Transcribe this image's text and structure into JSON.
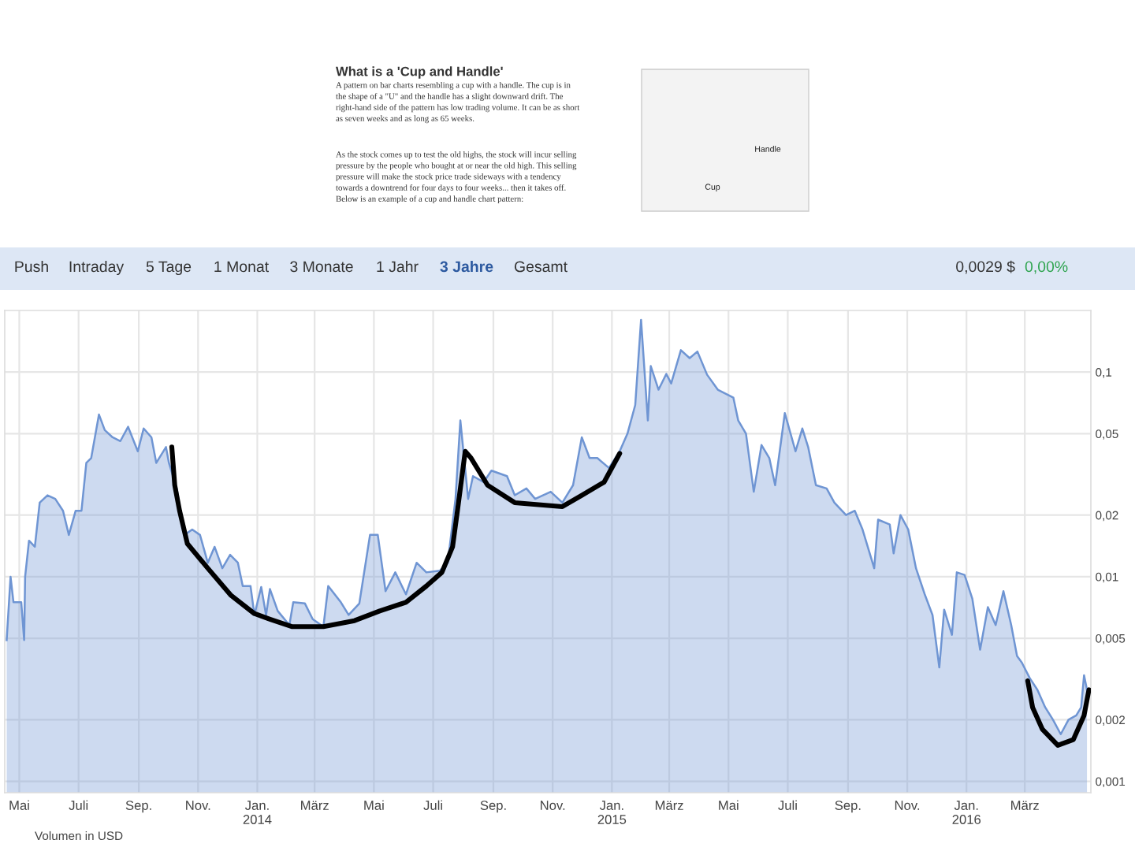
{
  "chart_data": {
    "type": "area",
    "title": "What is a 'Cup and Handle'",
    "annotations": [
      "A pattern on bar charts resembling a cup with a handle. The cup is in\nthe shape of a \"U\" and the handle has a slight downward drift. The\nright-hand side of the pattern has low trading volume. It can be as short\nas seven weeks and as long as 65 weeks.",
      "As the stock comes up to test the old highs, the stock will incur selling\npressure by the people who bought at or near the old high. This selling\npressure will make the stock price trade sideways with a tendency\ntowards a downtrend for four days to four weeks... then it takes off.\nBelow is an example of a cup and handle chart pattern:",
      "Cup",
      "Handle",
      "Push",
      "Intraday",
      "5 Tage",
      "1 Monat",
      "3 Monate",
      "1 Jahr",
      "3 Jahre",
      "Gesamt",
      "0,0029 $",
      "0,00%",
      "Volumen in USD"
    ],
    "series": [
      {
        "color": "#6f95d3",
        "x": [
          "2013-04-18",
          "2013-04-22",
          "2013-04-25",
          "2013-05-03",
          "2013-05-06",
          "2013-05-07",
          "2013-05-11",
          "2013-05-17",
          "2013-05-22",
          "2013-05-30",
          "2013-06-07",
          "2013-06-15",
          "2013-06-21",
          "2013-06-28",
          "2013-07-04",
          "2013-07-09",
          "2013-07-14",
          "2013-07-22",
          "2013-07-28",
          "2013-08-05",
          "2013-08-13",
          "2013-08-21",
          "2013-08-31",
          "2013-09-06",
          "2013-09-14",
          "2013-09-19",
          "2013-09-29",
          "2013-10-02",
          "2013-10-10",
          "2013-10-18",
          "2013-10-26",
          "2013-11-03",
          "2013-11-11",
          "2013-11-18",
          "2013-11-26",
          "2013-12-04",
          "2013-12-12",
          "2013-12-17",
          "2013-12-25",
          "2013-12-29",
          "2014-01-05",
          "2014-01-10",
          "2014-01-14",
          "2014-01-22",
          "2014-02-03",
          "2014-02-07",
          "2014-02-19",
          "2014-02-27",
          "2014-03-10",
          "2014-03-15",
          "2014-03-28",
          "2014-04-05",
          "2014-04-16",
          "2014-04-27",
          "2014-05-05",
          "2014-05-13",
          "2014-05-23",
          "2014-06-03",
          "2014-06-14",
          "2014-06-24",
          "2014-07-08",
          "2014-07-16",
          "2014-07-24",
          "2014-07-29",
          "2014-08-06",
          "2014-08-11",
          "2014-08-22",
          "2014-08-30",
          "2014-09-15",
          "2014-09-23",
          "2014-10-05",
          "2014-10-14",
          "2014-10-30",
          "2014-11-11",
          "2014-11-22",
          "2014-12-01",
          "2014-12-09",
          "2014-12-17",
          "2014-12-29",
          "2015-01-09",
          "2015-01-17",
          "2015-01-25",
          "2015-01-31",
          "2015-02-07",
          "2015-02-10",
          "2015-02-18",
          "2015-02-26",
          "2015-03-03",
          "2015-03-13",
          "2015-03-22",
          "2015-03-30",
          "2015-04-09",
          "2015-04-20",
          "2015-05-06",
          "2015-05-11",
          "2015-05-19",
          "2015-05-27",
          "2015-06-04",
          "2015-06-12",
          "2015-06-18",
          "2015-06-28",
          "2015-07-09",
          "2015-07-16",
          "2015-07-22",
          "2015-07-30",
          "2015-08-10",
          "2015-08-18",
          "2015-08-30",
          "2015-09-08",
          "2015-09-16",
          "2015-09-28",
          "2015-10-02",
          "2015-10-14",
          "2015-10-18",
          "2015-10-25",
          "2015-11-02",
          "2015-11-10",
          "2015-11-19",
          "2015-11-27",
          "2015-12-04",
          "2015-12-09",
          "2015-12-17",
          "2015-12-22",
          "2015-12-30",
          "2016-01-07",
          "2016-01-15",
          "2016-01-23",
          "2016-01-31",
          "2016-02-08",
          "2016-02-16",
          "2016-02-22",
          "2016-02-27",
          "2016-03-06",
          "2016-03-14",
          "2016-03-22",
          "2016-03-30",
          "2016-04-07",
          "2016-04-15",
          "2016-04-23",
          "2016-04-28",
          "2016-05-01",
          "2016-05-04"
        ],
        "values": [
          0.0049,
          0.01,
          0.0075,
          0.0075,
          0.0049,
          0.01,
          0.015,
          0.014,
          0.023,
          0.025,
          0.024,
          0.021,
          0.016,
          0.021,
          0.021,
          0.036,
          0.038,
          0.062,
          0.052,
          0.048,
          0.046,
          0.054,
          0.041,
          0.053,
          0.048,
          0.036,
          0.043,
          0.036,
          0.027,
          0.016,
          0.017,
          0.016,
          0.0117,
          0.014,
          0.011,
          0.0128,
          0.0117,
          0.009,
          0.009,
          0.0065,
          0.0089,
          0.0065,
          0.0087,
          0.0068,
          0.0058,
          0.0075,
          0.0074,
          0.0062,
          0.0057,
          0.009,
          0.0075,
          0.0065,
          0.0074,
          0.016,
          0.016,
          0.0085,
          0.0105,
          0.0082,
          0.0117,
          0.0105,
          0.0107,
          0.0117,
          0.024,
          0.058,
          0.024,
          0.031,
          0.029,
          0.033,
          0.031,
          0.025,
          0.027,
          0.024,
          0.026,
          0.023,
          0.028,
          0.048,
          0.038,
          0.038,
          0.034,
          0.041,
          0.05,
          0.069,
          0.18,
          0.058,
          0.107,
          0.082,
          0.098,
          0.088,
          0.128,
          0.117,
          0.126,
          0.097,
          0.082,
          0.075,
          0.058,
          0.05,
          0.026,
          0.044,
          0.038,
          0.028,
          0.063,
          0.041,
          0.053,
          0.043,
          0.028,
          0.027,
          0.023,
          0.02,
          0.021,
          0.017,
          0.011,
          0.019,
          0.018,
          0.013,
          0.02,
          0.017,
          0.011,
          0.0082,
          0.0065,
          0.0036,
          0.0069,
          0.0052,
          0.0105,
          0.0102,
          0.0078,
          0.0044,
          0.0071,
          0.0058,
          0.0085,
          0.0058,
          0.0041,
          0.0038,
          0.0032,
          0.0028,
          0.0023,
          0.002,
          0.0017,
          0.002,
          0.0021,
          0.0023,
          0.0033,
          0.0028
        ]
      },
      {
        "type": "line",
        "color": "#000000",
        "x": [
          "2013-10-05",
          "2013-10-08",
          "2013-10-13",
          "2013-10-21",
          "2013-11-11",
          "2013-12-05",
          "2013-12-29",
          "2014-01-14",
          "2014-02-06",
          "2014-03-10",
          "2014-04-11",
          "2014-05-07",
          "2014-06-03",
          "2014-06-24",
          "2014-07-10",
          "2014-07-21",
          "2014-07-26",
          "2014-08-03",
          "2014-08-09",
          "2014-08-26",
          "2014-09-23",
          "2014-11-11",
          "2014-12-01",
          "2014-12-24",
          "2015-01-09"
        ],
        "values": [
          0.043,
          0.028,
          0.021,
          0.0145,
          0.011,
          0.0081,
          0.0066,
          0.0062,
          0.0057,
          0.0057,
          0.0061,
          0.0068,
          0.0075,
          0.009,
          0.0105,
          0.014,
          0.021,
          0.041,
          0.038,
          0.028,
          0.023,
          0.022,
          0.025,
          0.029,
          0.04
        ]
      },
      {
        "type": "line",
        "color": "#000000",
        "x": [
          "2016-03-04",
          "2016-03-09",
          "2016-03-19",
          "2016-04-04",
          "2016-04-20",
          "2016-05-01",
          "2016-05-06"
        ],
        "values": [
          0.0031,
          0.0023,
          0.0018,
          0.0015,
          0.0016,
          0.0021,
          0.0028
        ]
      }
    ],
    "log": "y",
    "xlim": [
      "2013-04-16",
      "2016-05-08"
    ],
    "xticks": [
      {
        "value": "2013-05-01",
        "label": "Mai"
      },
      {
        "value": "2013-07-01",
        "label": "Juli"
      },
      {
        "value": "2013-09-01",
        "label": "Sep."
      },
      {
        "value": "2013-11-01",
        "label": "Nov."
      },
      {
        "value": "2014-01-01",
        "label": "Jan.\n2014"
      },
      {
        "value": "2014-03-01",
        "label": "März"
      },
      {
        "value": "2014-05-01",
        "label": "Mai"
      },
      {
        "value": "2014-07-01",
        "label": "Juli"
      },
      {
        "value": "2014-09-01",
        "label": "Sep."
      },
      {
        "value": "2014-11-01",
        "label": "Nov."
      },
      {
        "value": "2015-01-01",
        "label": "Jan.\n2015"
      },
      {
        "value": "2015-03-01",
        "label": "März"
      },
      {
        "value": "2015-05-01",
        "label": "Mai"
      },
      {
        "value": "2015-07-01",
        "label": "Juli"
      },
      {
        "value": "2015-09-01",
        "label": "Sep."
      },
      {
        "value": "2015-11-01",
        "label": "Nov."
      },
      {
        "value": "2016-01-01",
        "label": "Jan.\n2016"
      },
      {
        "value": "2016-03-01",
        "label": "März"
      }
    ],
    "ylim": [
      0.00088,
      0.2
    ],
    "yticks": [
      {
        "value": 0.001,
        "label": "0,001"
      },
      {
        "value": 0.002,
        "label": "0,002"
      },
      {
        "value": 0.005,
        "label": "0,005"
      },
      {
        "value": 0.01,
        "label": "0,01"
      },
      {
        "value": 0.02,
        "label": "0,02"
      },
      {
        "value": 0.05,
        "label": "0,05"
      },
      {
        "value": 0.1,
        "label": "0,1"
      }
    ],
    "grid": true,
    "legend": false
  }
}
